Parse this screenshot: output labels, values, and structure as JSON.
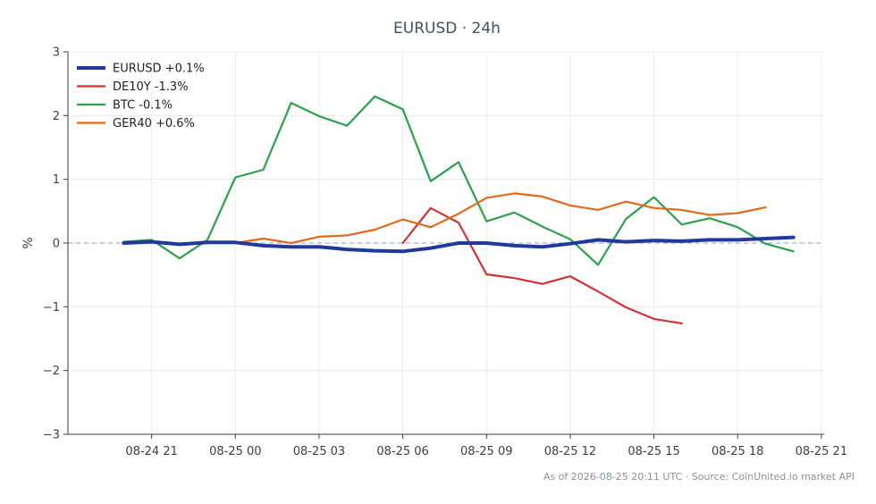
{
  "chart_data": {
    "type": "line",
    "title": "EURUSD · 24h",
    "xlabel": "",
    "ylabel": "%",
    "x_labels": [
      "08-24 21",
      "08-25 00",
      "08-25 03",
      "08-25 06",
      "08-25 09",
      "08-25 12",
      "08-25 15",
      "08-25 18",
      "08-25 21"
    ],
    "x_ticks_hours": [
      21,
      24,
      27,
      30,
      33,
      36,
      39,
      42,
      45
    ],
    "xlim_hours": [
      18.0,
      45.1
    ],
    "y_ticks": [
      3,
      2,
      1,
      0,
      -1,
      -2,
      -3
    ],
    "y_tick_labels": [
      "3",
      "2",
      "1",
      "0",
      "−1",
      "−2",
      "−3"
    ],
    "ylim": [
      -3,
      3
    ],
    "zero_line": true,
    "grid": true,
    "legend_position": "top-left",
    "series": [
      {
        "name": "EURUSD +0.1%",
        "color": "#1f3a9c",
        "emphasis": true,
        "x_hours": [
          20,
          21,
          22,
          23,
          24,
          25,
          26,
          27,
          28,
          29,
          30,
          31,
          32,
          33,
          34,
          35,
          36,
          37,
          38,
          39,
          40,
          41,
          42,
          43,
          44
        ],
        "values": [
          0.0,
          0.02,
          -0.02,
          0.01,
          0.01,
          -0.04,
          -0.06,
          -0.06,
          -0.1,
          -0.12,
          -0.13,
          -0.08,
          0.0,
          0.0,
          -0.04,
          -0.06,
          -0.01,
          0.05,
          0.02,
          0.04,
          0.03,
          0.05,
          0.05,
          0.07,
          0.09
        ]
      },
      {
        "name": "DE10Y -1.3%",
        "color": "#cc3333",
        "emphasis": false,
        "x_hours": [
          30,
          31,
          32,
          33,
          34,
          35,
          36,
          37,
          38,
          39,
          40
        ],
        "values": [
          0.0,
          0.55,
          0.32,
          -0.49,
          -0.55,
          -0.64,
          -0.52,
          -0.76,
          -1.01,
          -1.19,
          -1.26
        ]
      },
      {
        "name": "BTC -0.1%",
        "color": "#2ca04c",
        "emphasis": false,
        "x_hours": [
          20,
          21,
          22,
          23,
          24,
          25,
          26,
          27,
          28,
          29,
          30,
          31,
          32,
          33,
          34,
          35,
          36,
          37,
          38,
          39,
          40,
          41,
          42,
          43,
          44
        ],
        "values": [
          0.02,
          0.05,
          -0.24,
          0.05,
          1.03,
          1.15,
          2.2,
          1.99,
          1.84,
          2.3,
          2.1,
          0.97,
          1.27,
          0.34,
          0.48,
          0.26,
          0.06,
          -0.34,
          0.38,
          0.72,
          0.29,
          0.39,
          0.25,
          -0.01,
          -0.13
        ]
      },
      {
        "name": "GER40 +0.6%",
        "color": "#e06b1f",
        "emphasis": false,
        "x_hours": [
          24,
          25,
          26,
          27,
          28,
          29,
          30,
          31,
          32,
          33,
          34,
          35,
          36,
          37,
          38,
          39,
          40,
          41,
          42,
          43
        ],
        "values": [
          0.0,
          0.07,
          0.0,
          0.1,
          0.12,
          0.21,
          0.37,
          0.25,
          0.46,
          0.71,
          0.78,
          0.73,
          0.59,
          0.52,
          0.65,
          0.55,
          0.52,
          0.44,
          0.47,
          0.56
        ]
      }
    ],
    "footer": "As of 2026-08-25 20:11 UTC · Source: CoinUnited.io market API"
  }
}
